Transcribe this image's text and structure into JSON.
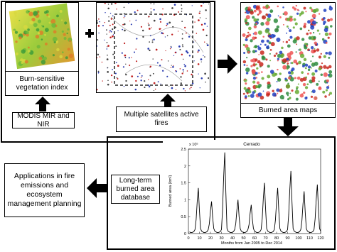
{
  "nodes": [
    {
      "label": "Burn-sensitive vegetation index"
    },
    {
      "label": "MODIS MIR and NIR"
    },
    {
      "label": "Multiple satellites active fires"
    },
    {
      "label": "Burned area maps"
    },
    {
      "label": "Long-term burned area database"
    },
    {
      "label": "Applications in fire emissions and ecosystem management planning"
    }
  ],
  "chart_data": {
    "type": "line",
    "title": "Cerrado",
    "xlabel": "Months from Jan 2005 to Dec 2014",
    "ylabel": "Burned area (km²)",
    "y_multiplier": "x 10⁵",
    "color": "#000000",
    "x": [
      1,
      2,
      3,
      4,
      5,
      6,
      7,
      8,
      9,
      10,
      11,
      12,
      13,
      14,
      15,
      16,
      17,
      18,
      19,
      20,
      21,
      22,
      23,
      24,
      25,
      26,
      27,
      28,
      29,
      30,
      31,
      32,
      33,
      34,
      35,
      36,
      37,
      38,
      39,
      40,
      41,
      42,
      43,
      44,
      45,
      46,
      47,
      48,
      49,
      50,
      51,
      52,
      53,
      54,
      55,
      56,
      57,
      58,
      59,
      60,
      61,
      62,
      63,
      64,
      65,
      66,
      67,
      68,
      69,
      70,
      71,
      72,
      73,
      74,
      75,
      76,
      77,
      78,
      79,
      80,
      81,
      82,
      83,
      84,
      85,
      86,
      87,
      88,
      89,
      90,
      91,
      92,
      93,
      94,
      95,
      96,
      97,
      98,
      99,
      100,
      101,
      102,
      103,
      104,
      105,
      106,
      107,
      108,
      109,
      110,
      111,
      112,
      113,
      114,
      115,
      116,
      117,
      118,
      119,
      120
    ],
    "values": [
      0.05,
      0.03,
      0.03,
      0.04,
      0.06,
      0.12,
      0.41,
      0.95,
      1.35,
      0.68,
      0.15,
      0.07,
      0.05,
      0.03,
      0.03,
      0.04,
      0.06,
      0.12,
      0.29,
      0.67,
      0.95,
      0.48,
      0.15,
      0.07,
      0.05,
      0.03,
      0.03,
      0.04,
      0.06,
      0.12,
      0.72,
      1.68,
      2.4,
      1.2,
      0.15,
      0.07,
      0.05,
      0.03,
      0.03,
      0.04,
      0.06,
      0.12,
      0.3,
      0.7,
      1.0,
      0.5,
      0.15,
      0.07,
      0.05,
      0.03,
      0.03,
      0.04,
      0.06,
      0.12,
      0.26,
      0.6,
      0.85,
      0.43,
      0.15,
      0.07,
      0.05,
      0.03,
      0.03,
      0.04,
      0.06,
      0.12,
      0.45,
      1.05,
      1.5,
      0.75,
      0.15,
      0.07,
      0.05,
      0.03,
      0.03,
      0.04,
      0.06,
      0.12,
      0.41,
      0.95,
      1.35,
      0.68,
      0.15,
      0.07,
      0.05,
      0.03,
      0.03,
      0.04,
      0.06,
      0.12,
      0.56,
      1.3,
      1.85,
      0.93,
      0.15,
      0.07,
      0.05,
      0.03,
      0.03,
      0.04,
      0.06,
      0.12,
      0.38,
      0.88,
      1.25,
      0.63,
      0.15,
      0.07,
      0.05,
      0.03,
      0.03,
      0.04,
      0.06,
      0.12,
      0.44,
      1.02,
      1.45,
      0.73,
      0.15,
      0.07
    ],
    "xlim": [
      0,
      120
    ],
    "xticks": [
      0,
      10,
      20,
      30,
      40,
      50,
      60,
      70,
      80,
      90,
      100,
      110,
      120
    ],
    "ylim": [
      0,
      2.5
    ],
    "yticks": [
      0,
      0.5,
      1,
      1.5,
      2,
      2.5
    ]
  }
}
